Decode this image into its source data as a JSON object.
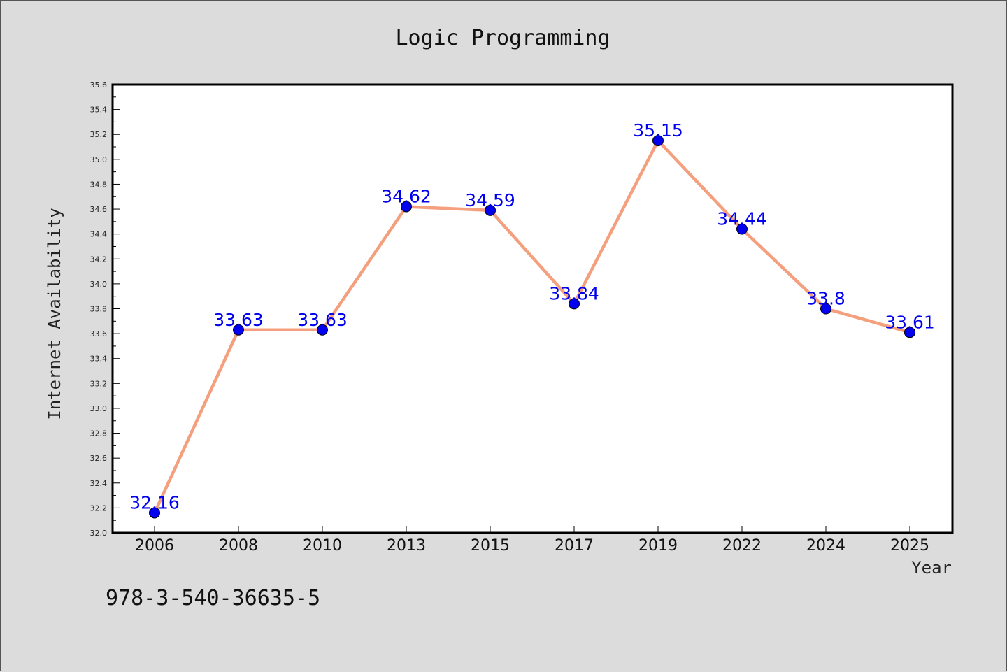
{
  "chart_data": {
    "type": "line",
    "title": "Logic Programming",
    "xlabel": "Year",
    "ylabel": "Internet Availability",
    "categories": [
      "2006",
      "2008",
      "2010",
      "2013",
      "2015",
      "2017",
      "2019",
      "2022",
      "2024",
      "2025"
    ],
    "series": [
      {
        "values": [
          32.16,
          33.63,
          33.63,
          34.62,
          34.59,
          33.84,
          35.15,
          34.44,
          33.8,
          33.61
        ],
        "data_labels": [
          "32.16",
          "33.63",
          "33.63",
          "34.62",
          "34.59",
          "33.84",
          "35.15",
          "34.44",
          "33.8",
          "33.61"
        ],
        "line_color": "#f4a07e",
        "marker_color": "#0000ee"
      }
    ],
    "ylim": [
      32.0,
      35.6
    ],
    "yticks": [
      "32.0",
      "32.2",
      "32.4",
      "32.6",
      "32.8",
      "33.0",
      "33.2",
      "33.4",
      "33.6",
      "33.8",
      "34.0",
      "34.2",
      "34.4",
      "34.6",
      "34.8",
      "35.0",
      "35.2",
      "35.4",
      "35.6"
    ],
    "grid": false,
    "legend": "none",
    "label_color": "#0000ee",
    "background": "#dcdcdc",
    "plot_background": "#ffffff"
  },
  "footer": {
    "isbn": "978-3-540-36635-5"
  }
}
